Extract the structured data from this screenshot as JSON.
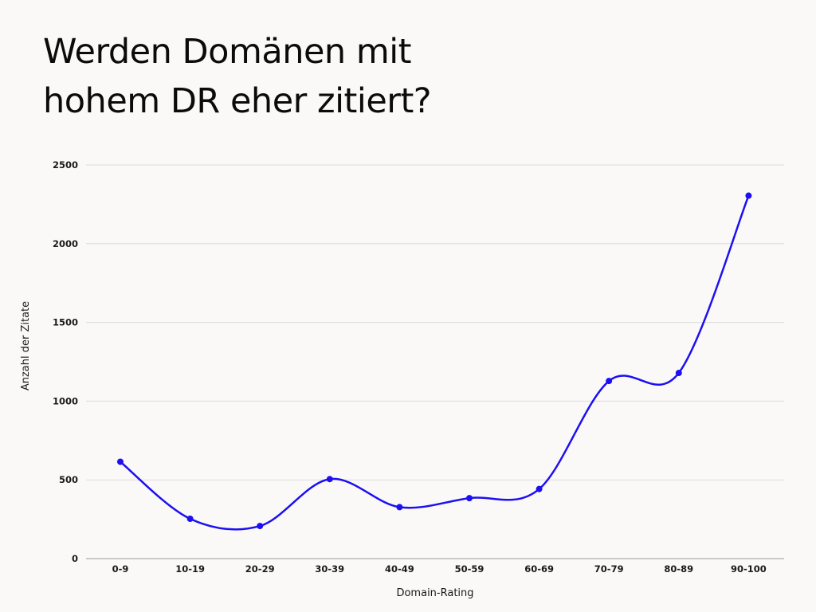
{
  "title_lines": [
    "Werden Domänen mit",
    "hohem DR eher zitiert?"
  ],
  "chart_data": {
    "type": "line",
    "title": "Werden Domänen mit hohem DR eher zitiert?",
    "xlabel": "Domain-Rating",
    "ylabel": "Anzahl der Zitate",
    "categories": [
      "0-9",
      "10-19",
      "20-29",
      "30-39",
      "40-49",
      "50-59",
      "60-69",
      "70-79",
      "80-89",
      "90-100"
    ],
    "series": [
      {
        "values": [
          615,
          253,
          207,
          505,
          327,
          384,
          442,
          1128,
          1179,
          2305
        ],
        "color": "#1d0ff2"
      }
    ],
    "ylim": [
      0,
      2500
    ],
    "yticks": [
      0,
      500,
      1000,
      1500,
      2000,
      2500
    ],
    "grid": true,
    "smooth": true,
    "legend": "none"
  }
}
